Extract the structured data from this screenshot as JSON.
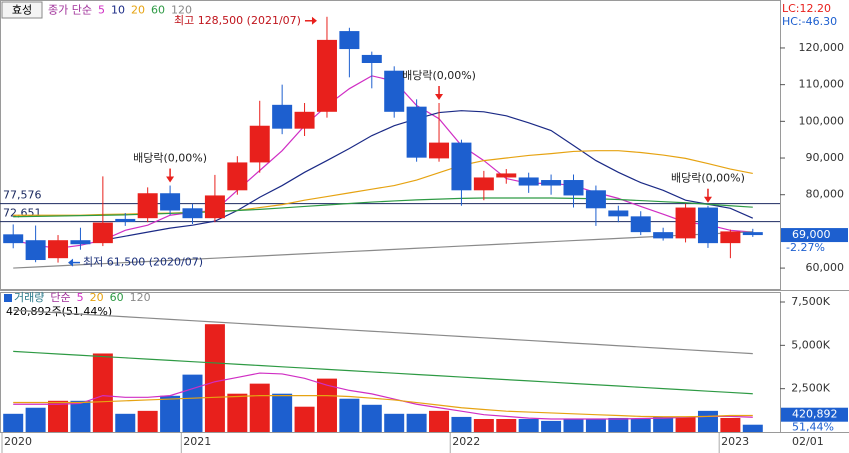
{
  "header": {
    "stock": "효성",
    "ma_label": "종가 단순",
    "lc": "LC:12.20",
    "hc": "HC:-46.30",
    "date": "02/01"
  },
  "chart_data": [
    {
      "type": "candlestick",
      "categories": [
        "2020",
        null,
        null,
        null,
        null,
        null,
        null,
        null,
        "2021",
        null,
        null,
        null,
        null,
        null,
        null,
        null,
        null,
        null,
        null,
        null,
        "2022",
        null,
        null,
        null,
        null,
        null,
        null,
        null,
        null,
        null,
        null,
        null,
        "2023",
        null
      ],
      "open": [
        69200,
        67600,
        62700,
        67600,
        66800,
        73400,
        73600,
        80400,
        76300,
        73600,
        81200,
        88800,
        104500,
        98000,
        102600,
        124600,
        118100,
        113800,
        104000,
        89900,
        94200,
        81200,
        84700,
        84700,
        84000,
        84000,
        81200,
        75700,
        74100,
        69800,
        68100,
        76500,
        66800,
        69800
      ],
      "high": [
        71900,
        71600,
        69000,
        71000,
        85000,
        75000,
        82000,
        82500,
        77500,
        85400,
        90500,
        105600,
        110000,
        105000,
        128500,
        125500,
        119000,
        115000,
        106000,
        105000,
        95000,
        86500,
        87000,
        86000,
        85500,
        85500,
        82500,
        77000,
        75500,
        71000,
        77500,
        77000,
        70500,
        70700
      ],
      "low": [
        65400,
        61600,
        61500,
        65000,
        66000,
        71500,
        72500,
        74500,
        72000,
        72500,
        80000,
        86000,
        96500,
        96000,
        101000,
        112000,
        109000,
        101000,
        89000,
        89000,
        77000,
        78500,
        83000,
        80500,
        80000,
        76500,
        71500,
        72500,
        69000,
        67500,
        67000,
        65500,
        62700,
        68500
      ],
      "close": [
        66800,
        62200,
        67600,
        66500,
        72400,
        72600,
        80400,
        75700,
        73600,
        79800,
        88800,
        98800,
        98000,
        102600,
        122200,
        119700,
        115900,
        102600,
        90100,
        94200,
        81200,
        84700,
        85800,
        82500,
        82500,
        79800,
        76300,
        74100,
        69800,
        68100,
        76500,
        66800,
        70000,
        69000
      ],
      "up_color": "#e8201c",
      "down_color": "#1d5fcf",
      "series": [
        {
          "name": "5",
          "color": "#d02ec4",
          "values": [
            67600,
            66200,
            65400,
            66200,
            67600,
            70300,
            71700,
            74400,
            75200,
            75700,
            81200,
            86600,
            92000,
            98800,
            104300,
            108900,
            112400,
            111000,
            104300,
            100700,
            93400,
            89300,
            84400,
            83100,
            83100,
            82500,
            80600,
            79000,
            76800,
            74700,
            72500,
            71800,
            70300,
            69800
          ]
        },
        {
          "name": "10",
          "color": "#1b2a86",
          "values": [
            null,
            null,
            null,
            null,
            67600,
            68700,
            69800,
            70900,
            71700,
            72800,
            75700,
            79300,
            82500,
            86100,
            89300,
            92600,
            96100,
            98800,
            100700,
            102400,
            102900,
            102600,
            101500,
            99600,
            97500,
            93400,
            89300,
            86100,
            83300,
            81200,
            78500,
            77400,
            76300,
            73600
          ]
        },
        {
          "name": "20",
          "color": "#e6a312",
          "values": [
            74400,
            74400,
            74400,
            74400,
            74600,
            74700,
            74900,
            75000,
            75200,
            75500,
            75700,
            76500,
            77300,
            78500,
            79500,
            80500,
            81500,
            82500,
            84000,
            86000,
            88000,
            89300,
            90000,
            90700,
            91200,
            91800,
            92000,
            92000,
            91500,
            90800,
            89900,
            88500,
            87000,
            85800
          ]
        },
        {
          "name": "60",
          "color": "#2e9a44",
          "values": [
            74000,
            74100,
            74200,
            74300,
            74400,
            74500,
            74700,
            74900,
            75100,
            75400,
            75700,
            76000,
            76400,
            76800,
            77200,
            77600,
            78000,
            78300,
            78600,
            78800,
            79000,
            79100,
            79100,
            79100,
            79100,
            79000,
            78900,
            78700,
            78400,
            78100,
            77800,
            77400,
            77000,
            76600
          ]
        },
        {
          "name": "120",
          "color": "#8a8a8a",
          "values": [
            60000,
            60300,
            60600,
            60900,
            61200,
            61500,
            61800,
            62100,
            62400,
            62700,
            63000,
            63300,
            63600,
            63900,
            64200,
            64500,
            64800,
            65100,
            65400,
            65700,
            66000,
            66300,
            66600,
            66900,
            67200,
            67500,
            67800,
            68100,
            68400,
            68700,
            69000,
            69300,
            69600,
            69900
          ]
        }
      ],
      "ylim": [
        54300,
        132800
      ],
      "yticks": [
        {
          "value": 60000,
          "label": "60,000"
        },
        {
          "value": 80000,
          "label": "80,000"
        },
        {
          "value": 90000,
          "label": "90,000"
        },
        {
          "value": 100000,
          "label": "100,000"
        },
        {
          "value": 110000,
          "label": "110,000"
        },
        {
          "value": 120000,
          "label": "120,000"
        }
      ],
      "hlines": [
        {
          "value": 77576,
          "label": "77,576"
        },
        {
          "value": 72651,
          "label": "72,651"
        }
      ],
      "last": {
        "value": 69000,
        "label": "69,000",
        "change": "-2.27%"
      },
      "annotations": [
        {
          "kind": "high",
          "text": "최고 128,500 (2021/07)",
          "at": 14
        },
        {
          "kind": "low",
          "text": "최저 61,500 (2020/07)",
          "at": 2
        },
        {
          "kind": "dividend",
          "text": "배당락(0,00%)",
          "at": 7
        },
        {
          "kind": "dividend",
          "text": "배당락(0,00%)",
          "at": 19
        },
        {
          "kind": "dividend",
          "text": "배당락(0,00%)",
          "at": 31
        }
      ]
    },
    {
      "type": "bar",
      "title": "거래량",
      "ma_label": "단순",
      "values": [
        1050,
        1400,
        1800,
        1800,
        4530,
        1050,
        1220,
        2090,
        3310,
        6220,
        2210,
        2790,
        2210,
        1460,
        3080,
        1920,
        1570,
        1050,
        1050,
        1220,
        870,
        750,
        750,
        750,
        640,
        750,
        750,
        810,
        750,
        870,
        870,
        1220,
        810,
        420.892
      ],
      "series": [
        {
          "name": "5",
          "color": "#d02ec4",
          "values": [
            1600,
            1600,
            1600,
            1650,
            2100,
            2000,
            2000,
            2100,
            2500,
            2900,
            3150,
            3400,
            3350,
            3100,
            2700,
            2400,
            2200,
            1900,
            1600,
            1400,
            1200,
            1000,
            900,
            800,
            750,
            750,
            750,
            750,
            780,
            800,
            850,
            900,
            900,
            850
          ]
        },
        {
          "name": "20",
          "color": "#e6a312",
          "values": [
            1700,
            1700,
            1700,
            1700,
            1750,
            1800,
            1850,
            1900,
            1950,
            2000,
            2050,
            2100,
            2100,
            2100,
            2100,
            2050,
            1950,
            1850,
            1700,
            1550,
            1400,
            1300,
            1200,
            1150,
            1100,
            1050,
            1000,
            950,
            900,
            880,
            880,
            900,
            950,
            950
          ]
        },
        {
          "name": "60",
          "color": "#2e9a44",
          "values": [
            4650,
            4576,
            4502,
            4428,
            4354,
            4280,
            4206,
            4132,
            4058,
            3984,
            3910,
            3836,
            3762,
            3688,
            3614,
            3540,
            3466,
            3392,
            3318,
            3244,
            3170,
            3096,
            3022,
            2948,
            2874,
            2800,
            2726,
            2652,
            2578,
            2504,
            2430,
            2356,
            2282,
            2208
          ]
        },
        {
          "name": "120",
          "color": "#8a8a8a",
          "values": [
            7030,
            6954,
            6878,
            6802,
            6726,
            6650,
            6574,
            6498,
            6422,
            6346,
            6270,
            6194,
            6118,
            6042,
            5966,
            5890,
            5814,
            5738,
            5662,
            5586,
            5510,
            5434,
            5358,
            5282,
            5206,
            5130,
            5054,
            4978,
            4902,
            4826,
            4750,
            4674,
            4598,
            4522
          ]
        }
      ],
      "ylim": [
        0,
        8020
      ],
      "yticks": [
        {
          "value": 2500,
          "label": "2,500K"
        },
        {
          "value": 5000,
          "label": "5,000K"
        },
        {
          "value": 7500,
          "label": "7,500K"
        }
      ],
      "info": "420,892주(51,44%)",
      "last": {
        "value": 420.892,
        "label": "420,892",
        "change": "51,44%"
      }
    }
  ]
}
